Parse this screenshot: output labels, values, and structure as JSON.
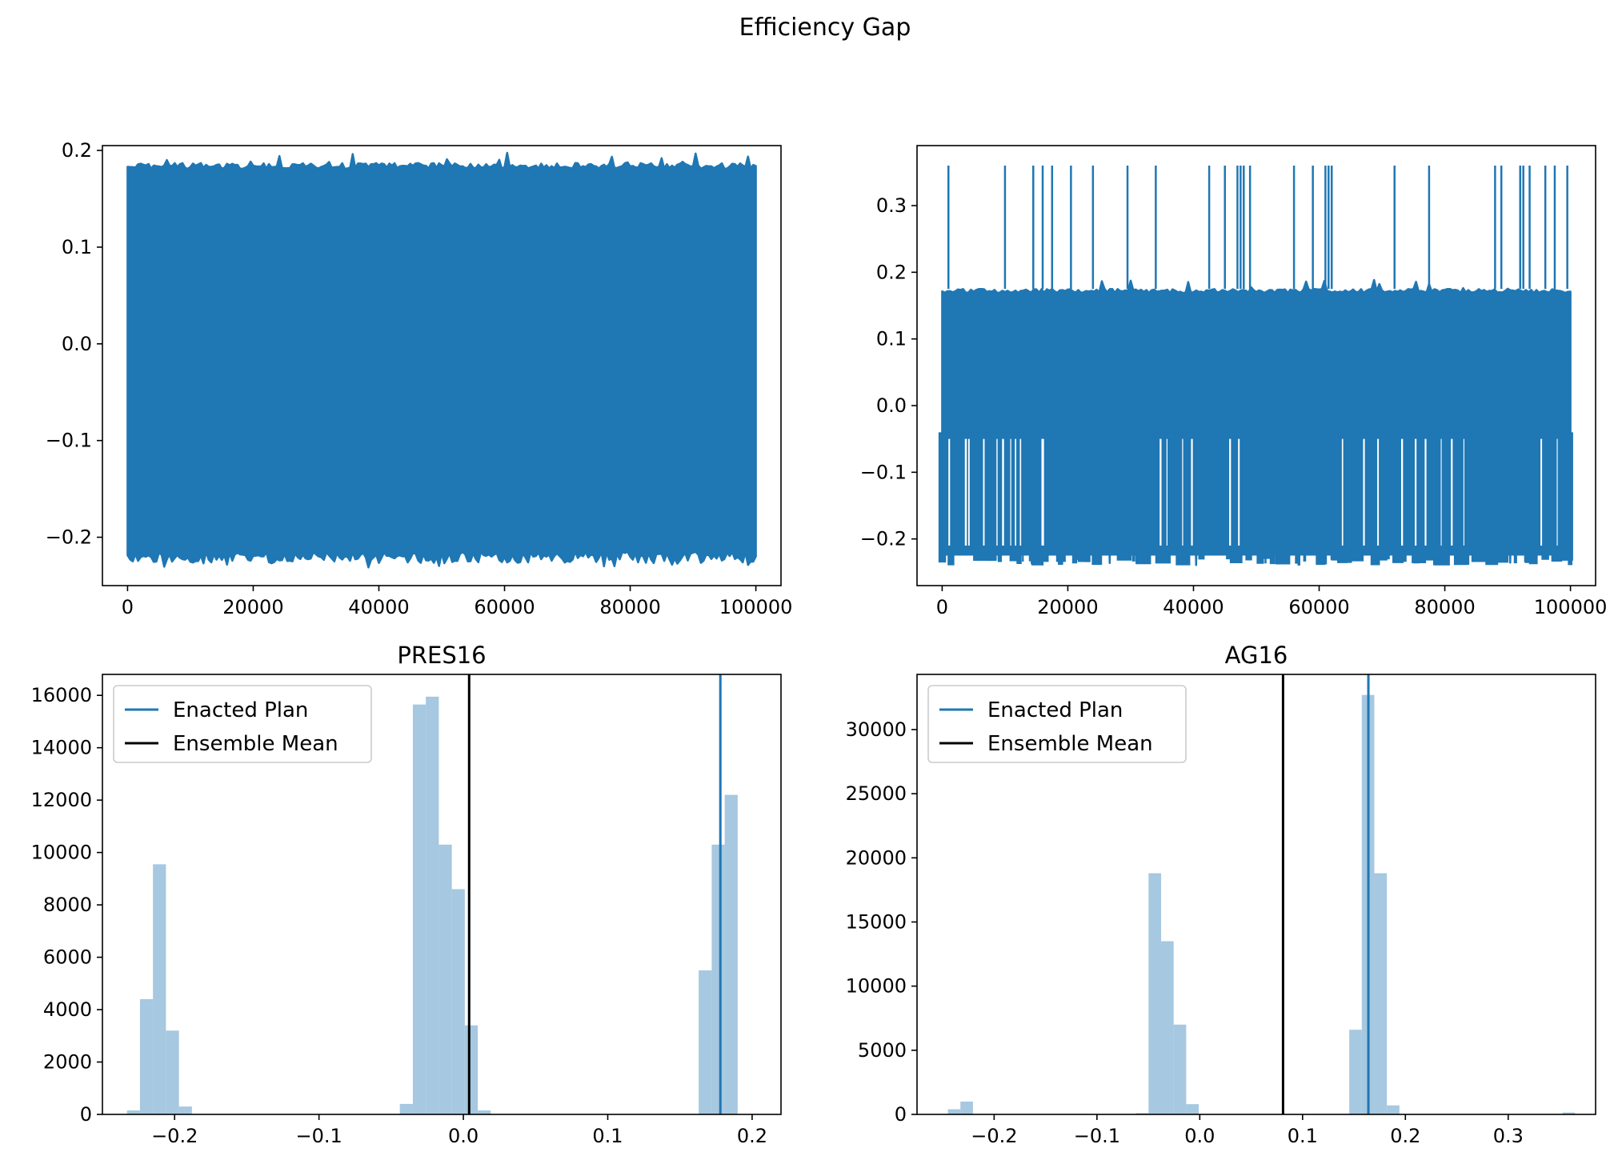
{
  "figure": {
    "suptitle": "Efficiency Gap"
  },
  "colors": {
    "trace": "#1f77b4",
    "hist": "#a6c8e0",
    "enacted": "#1f77b4",
    "mean": "#000000"
  },
  "chart_data": [
    {
      "type": "line",
      "title": "",
      "xlim": [
        -4000,
        104000
      ],
      "ylim": [
        -0.25,
        0.205
      ],
      "xticks": [
        0,
        20000,
        40000,
        60000,
        80000,
        100000
      ],
      "xtick_labels": [
        "0",
        "20000",
        "40000",
        "60000",
        "80000",
        "100000"
      ],
      "yticks": [
        -0.2,
        -0.1,
        0.0,
        0.1,
        0.2
      ],
      "ytick_labels": [
        "−0.2",
        "−0.1",
        "0.0",
        "0.1",
        "0.2"
      ],
      "series": [
        {
          "steps": 100000,
          "band": [
            -0.215,
            0.187
          ],
          "min": -0.232,
          "max": 0.198
        }
      ]
    },
    {
      "type": "line",
      "title": "",
      "xlim": [
        -4000,
        104000
      ],
      "ylim": [
        -0.27,
        0.39
      ],
      "xticks": [
        0,
        20000,
        40000,
        60000,
        80000,
        100000
      ],
      "xtick_labels": [
        "0",
        "20000",
        "40000",
        "60000",
        "80000",
        "100000"
      ],
      "yticks": [
        -0.2,
        -0.1,
        0.0,
        0.1,
        0.2,
        0.3
      ],
      "ytick_labels": [
        "−0.2",
        "−0.1",
        "0.0",
        "0.1",
        "0.2",
        "0.3"
      ],
      "series": [
        {
          "steps": 100000,
          "band": [
            -0.04,
            0.175
          ],
          "min": -0.24,
          "max": 0.36,
          "spikes_x": [
            1000,
            10000,
            14500,
            16000,
            17500,
            20500,
            24000,
            29500,
            34000,
            42500,
            45000,
            47000,
            47500,
            48000,
            49000,
            56000,
            59000,
            61000,
            61500,
            62000,
            72000,
            77500,
            88000,
            89000,
            92000,
            92500,
            93500,
            96000,
            97500,
            99500
          ]
        }
      ]
    },
    {
      "type": "bar",
      "title": "PRES16",
      "xlim": [
        -0.25,
        0.22
      ],
      "ylim": [
        0,
        16800
      ],
      "xticks": [
        -0.2,
        -0.1,
        0.0,
        0.1,
        0.2
      ],
      "xtick_labels": [
        "−0.2",
        "−0.1",
        "0.0",
        "0.1",
        "0.2"
      ],
      "yticks": [
        0,
        2000,
        4000,
        6000,
        8000,
        10000,
        12000,
        14000,
        16000
      ],
      "ytick_labels": [
        "0",
        "2000",
        "4000",
        "6000",
        "8000",
        "10000",
        "12000",
        "14000",
        "16000"
      ],
      "bin_edges": [
        -0.233,
        -0.224,
        -0.215,
        -0.206,
        -0.197,
        -0.188,
        -0.179,
        -0.17,
        -0.161,
        -0.152,
        -0.143,
        -0.134,
        -0.125,
        -0.116,
        -0.107,
        -0.098,
        -0.089,
        -0.08,
        -0.071,
        -0.062,
        -0.053,
        -0.044,
        -0.035,
        -0.026,
        -0.017,
        -0.008,
        0.001,
        0.01,
        0.019,
        0.028,
        0.037,
        0.046,
        0.055,
        0.064,
        0.073,
        0.082,
        0.091,
        0.1,
        0.109,
        0.118,
        0.127,
        0.136,
        0.145,
        0.154,
        0.163,
        0.172,
        0.181,
        0.19
      ],
      "counts": [
        150,
        4400,
        9550,
        3200,
        300,
        0,
        0,
        0,
        0,
        0,
        0,
        0,
        0,
        0,
        0,
        0,
        0,
        0,
        0,
        0,
        0,
        400,
        15650,
        15950,
        10300,
        8600,
        3400,
        150,
        0,
        0,
        0,
        0,
        0,
        0,
        0,
        0,
        0,
        0,
        0,
        0,
        0,
        0,
        0,
        0,
        5500,
        10300,
        12200
      ],
      "enacted": 0.178,
      "ensemble_mean": 0.004,
      "legend": [
        "Enacted Plan",
        "Ensemble Mean"
      ],
      "legend_loc": "upper left"
    },
    {
      "type": "bar",
      "title": "AG16",
      "xlim": [
        -0.275,
        0.385
      ],
      "ylim": [
        0,
        34300
      ],
      "xticks": [
        -0.2,
        -0.1,
        0.0,
        0.1,
        0.2,
        0.3
      ],
      "xtick_labels": [
        "−0.2",
        "−0.1",
        "0.0",
        "0.1",
        "0.2",
        "0.3"
      ],
      "yticks": [
        0,
        5000,
        10000,
        15000,
        20000,
        25000,
        30000
      ],
      "ytick_labels": [
        "0",
        "5000",
        "10000",
        "15000",
        "20000",
        "25000",
        "30000"
      ],
      "bin_edges": [
        -0.245,
        -0.2328,
        -0.2206,
        -0.2084,
        -0.1962,
        -0.184,
        -0.1718,
        -0.1596,
        -0.1474,
        -0.1352,
        -0.123,
        -0.1108,
        -0.0986,
        -0.0864,
        -0.0742,
        -0.062,
        -0.0498,
        -0.0376,
        -0.0254,
        -0.0132,
        -0.001,
        0.0112,
        0.0234,
        0.0356,
        0.0478,
        0.06,
        0.0722,
        0.0844,
        0.0966,
        0.1088,
        0.121,
        0.1332,
        0.1454,
        0.1576,
        0.1698,
        0.182,
        0.1942,
        0.2064,
        0.2186,
        0.2308,
        0.243,
        0.2552,
        0.2674,
        0.2796,
        0.2918,
        0.304,
        0.3162,
        0.3284,
        0.3406,
        0.3528,
        0.365
      ],
      "counts": [
        400,
        1000,
        0,
        0,
        0,
        0,
        0,
        0,
        0,
        0,
        0,
        0,
        0,
        0,
        0,
        100,
        18800,
        13500,
        7000,
        800,
        0,
        0,
        0,
        0,
        0,
        0,
        0,
        0,
        0,
        0,
        0,
        0,
        6600,
        32700,
        18800,
        700,
        0,
        0,
        0,
        0,
        0,
        0,
        0,
        0,
        0,
        0,
        0,
        0,
        0,
        150
      ],
      "enacted": 0.164,
      "ensemble_mean": 0.081,
      "legend": [
        "Enacted Plan",
        "Ensemble Mean"
      ],
      "legend_loc": "upper left"
    }
  ]
}
